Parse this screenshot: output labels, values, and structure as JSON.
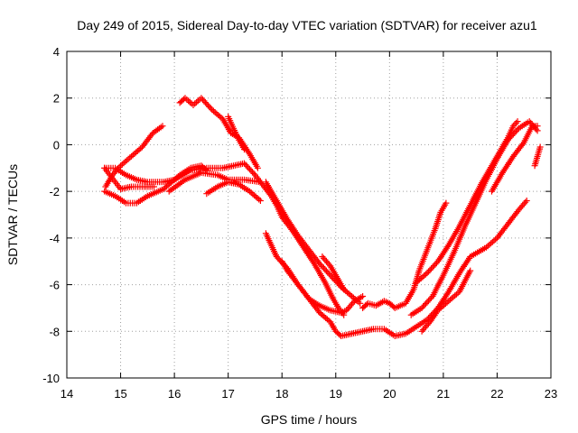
{
  "chart_data": {
    "type": "scatter",
    "title": "Day 249 of 2015, Sidereal Day-to-day VTEC variation (SDTVAR) for receiver azu1",
    "xlabel": "GPS time / hours",
    "ylabel": "SDTVAR / TECUs",
    "xlim": [
      14,
      23
    ],
    "ylim": [
      -10,
      4
    ],
    "x_ticks": [
      14,
      15,
      16,
      17,
      18,
      19,
      20,
      21,
      22,
      23
    ],
    "y_ticks": [
      4,
      2,
      0,
      -2,
      -4,
      -6,
      -8,
      -10
    ],
    "grid": true,
    "marker": "+",
    "color": "#ff0000",
    "series": [
      {
        "name": "track-1",
        "points": [
          [
            14.72,
            -1.8
          ],
          [
            14.85,
            -1.3
          ],
          [
            15.0,
            -0.9
          ],
          [
            15.2,
            -0.5
          ],
          [
            15.4,
            -0.1
          ],
          [
            15.6,
            0.5
          ],
          [
            15.78,
            0.8
          ]
        ]
      },
      {
        "name": "track-2",
        "points": [
          [
            14.7,
            -1.0
          ],
          [
            14.8,
            -1.3
          ],
          [
            14.9,
            -1.6
          ],
          [
            15.0,
            -1.9
          ],
          [
            15.2,
            -1.8
          ],
          [
            15.4,
            -1.8
          ],
          [
            15.62,
            -1.8
          ]
        ]
      },
      {
        "name": "track-3",
        "points": [
          [
            14.7,
            -2.0
          ],
          [
            14.9,
            -2.2
          ],
          [
            15.1,
            -2.5
          ],
          [
            15.3,
            -2.5
          ],
          [
            15.5,
            -2.2
          ],
          [
            15.8,
            -1.9
          ],
          [
            16.1,
            -1.3
          ],
          [
            16.3,
            -1.0
          ],
          [
            16.5,
            -0.9
          ],
          [
            16.6,
            -1.1
          ]
        ]
      },
      {
        "name": "track-4",
        "points": [
          [
            14.7,
            -1.0
          ],
          [
            14.9,
            -1.0
          ],
          [
            15.1,
            -1.3
          ],
          [
            15.3,
            -1.5
          ],
          [
            15.5,
            -1.6
          ],
          [
            15.8,
            -1.6
          ],
          [
            16.0,
            -1.5
          ],
          [
            16.3,
            -1.1
          ],
          [
            16.6,
            -1.0
          ],
          [
            16.9,
            -1.0
          ],
          [
            17.1,
            -0.9
          ],
          [
            17.3,
            -0.8
          ],
          [
            17.5,
            -1.3
          ],
          [
            17.6,
            -1.6
          ]
        ]
      },
      {
        "name": "track-5",
        "points": [
          [
            16.6,
            -2.1
          ],
          [
            16.8,
            -1.8
          ],
          [
            17.0,
            -1.6
          ],
          [
            17.2,
            -1.7
          ],
          [
            17.4,
            -2.0
          ],
          [
            17.6,
            -2.4
          ]
        ]
      },
      {
        "name": "track-6",
        "points": [
          [
            15.9,
            -2.0
          ],
          [
            16.2,
            -1.5
          ],
          [
            16.5,
            -1.2
          ],
          [
            16.8,
            -1.3
          ],
          [
            17.0,
            -1.5
          ],
          [
            17.3,
            -1.5
          ],
          [
            17.6,
            -1.6
          ],
          [
            17.8,
            -2.2
          ],
          [
            17.9,
            -2.6
          ],
          [
            18.0,
            -3.1
          ],
          [
            18.2,
            -3.7
          ],
          [
            18.4,
            -4.4
          ],
          [
            18.6,
            -5.1
          ],
          [
            18.8,
            -5.9
          ],
          [
            18.95,
            -6.6
          ],
          [
            19.05,
            -7.0
          ],
          [
            19.15,
            -7.3
          ]
        ]
      },
      {
        "name": "track-7",
        "points": [
          [
            16.1,
            1.8
          ],
          [
            16.2,
            2.0
          ],
          [
            16.35,
            1.7
          ],
          [
            16.5,
            2.0
          ],
          [
            16.7,
            1.5
          ],
          [
            16.9,
            1.1
          ],
          [
            17.05,
            0.5
          ],
          [
            17.2,
            0.3
          ],
          [
            17.4,
            -0.4
          ],
          [
            17.55,
            -1.0
          ]
        ]
      },
      {
        "name": "track-8",
        "points": [
          [
            17.0,
            1.2
          ],
          [
            17.1,
            0.7
          ],
          [
            17.2,
            0.2
          ],
          [
            17.3,
            -0.2
          ]
        ]
      },
      {
        "name": "track-9",
        "points": [
          [
            17.7,
            -1.6
          ],
          [
            17.9,
            -2.4
          ],
          [
            18.1,
            -3.2
          ],
          [
            18.3,
            -3.9
          ],
          [
            18.5,
            -4.5
          ],
          [
            18.7,
            -5.1
          ],
          [
            18.9,
            -5.6
          ],
          [
            19.1,
            -6.1
          ],
          [
            19.3,
            -6.5
          ],
          [
            19.45,
            -6.8
          ]
        ]
      },
      {
        "name": "track-10",
        "points": [
          [
            17.7,
            -3.8
          ],
          [
            17.9,
            -4.8
          ],
          [
            18.1,
            -5.3
          ],
          [
            18.3,
            -6.0
          ],
          [
            18.5,
            -6.6
          ],
          [
            18.7,
            -6.9
          ],
          [
            18.9,
            -7.1
          ],
          [
            19.1,
            -7.2
          ],
          [
            19.2,
            -7.1
          ],
          [
            19.35,
            -6.7
          ],
          [
            19.5,
            -6.5
          ]
        ]
      },
      {
        "name": "track-11",
        "points": [
          [
            18.0,
            -5.0
          ],
          [
            18.1,
            -5.4
          ],
          [
            18.3,
            -6.0
          ],
          [
            18.5,
            -6.6
          ],
          [
            18.7,
            -7.2
          ],
          [
            18.9,
            -7.6
          ],
          [
            19.0,
            -8.0
          ],
          [
            19.1,
            -8.2
          ],
          [
            19.3,
            -8.1
          ],
          [
            19.5,
            -8.0
          ],
          [
            19.7,
            -7.9
          ],
          [
            19.9,
            -7.9
          ],
          [
            20.1,
            -8.2
          ],
          [
            20.3,
            -8.1
          ],
          [
            20.5,
            -7.8
          ],
          [
            20.7,
            -7.5
          ],
          [
            20.9,
            -7.0
          ],
          [
            21.1,
            -6.3
          ],
          [
            21.3,
            -5.5
          ],
          [
            21.5,
            -4.8
          ],
          [
            21.8,
            -4.4
          ],
          [
            22.0,
            -4.0
          ],
          [
            22.2,
            -3.4
          ],
          [
            22.4,
            -2.8
          ],
          [
            22.55,
            -2.4
          ]
        ]
      },
      {
        "name": "track-12",
        "points": [
          [
            18.75,
            -4.8
          ],
          [
            18.9,
            -5.2
          ],
          [
            19.05,
            -5.8
          ],
          [
            19.15,
            -6.2
          ]
        ]
      },
      {
        "name": "track-13",
        "points": [
          [
            19.5,
            -7.0
          ],
          [
            19.6,
            -6.8
          ],
          [
            19.75,
            -6.9
          ],
          [
            19.9,
            -6.7
          ],
          [
            20.0,
            -6.8
          ],
          [
            20.1,
            -7.0
          ],
          [
            20.3,
            -6.8
          ],
          [
            20.45,
            -6.2
          ],
          [
            20.55,
            -5.4
          ],
          [
            20.7,
            -4.5
          ],
          [
            20.85,
            -3.6
          ],
          [
            20.95,
            -2.9
          ],
          [
            21.05,
            -2.5
          ]
        ]
      },
      {
        "name": "track-14",
        "points": [
          [
            20.4,
            -7.3
          ],
          [
            20.6,
            -7.0
          ],
          [
            20.8,
            -6.5
          ],
          [
            21.0,
            -5.6
          ],
          [
            21.2,
            -4.6
          ],
          [
            21.4,
            -3.5
          ],
          [
            21.6,
            -2.5
          ],
          [
            21.8,
            -1.5
          ],
          [
            22.0,
            -0.6
          ],
          [
            22.2,
            0.2
          ],
          [
            22.4,
            0.7
          ],
          [
            22.6,
            1.0
          ],
          [
            22.75,
            0.6
          ]
        ]
      },
      {
        "name": "track-15",
        "points": [
          [
            20.5,
            -5.9
          ],
          [
            20.7,
            -5.5
          ],
          [
            20.9,
            -5.0
          ],
          [
            21.1,
            -4.3
          ],
          [
            21.3,
            -3.5
          ],
          [
            21.5,
            -2.6
          ],
          [
            21.7,
            -1.7
          ],
          [
            21.9,
            -0.9
          ],
          [
            22.05,
            -0.3
          ],
          [
            22.2,
            0.3
          ],
          [
            22.3,
            0.8
          ],
          [
            22.38,
            1.0
          ]
        ]
      },
      {
        "name": "track-16",
        "points": [
          [
            20.6,
            -8.0
          ],
          [
            20.75,
            -7.6
          ],
          [
            20.9,
            -7.1
          ],
          [
            21.1,
            -6.7
          ],
          [
            21.3,
            -6.3
          ],
          [
            21.5,
            -5.4
          ]
        ]
      },
      {
        "name": "track-17",
        "points": [
          [
            21.9,
            -2.0
          ],
          [
            22.1,
            -1.2
          ],
          [
            22.3,
            -0.5
          ],
          [
            22.5,
            0.1
          ],
          [
            22.65,
            0.8
          ],
          [
            22.75,
            0.8
          ]
        ]
      },
      {
        "name": "track-18",
        "points": [
          [
            22.7,
            -0.9
          ],
          [
            22.75,
            -0.5
          ],
          [
            22.8,
            -0.1
          ]
        ]
      }
    ]
  }
}
